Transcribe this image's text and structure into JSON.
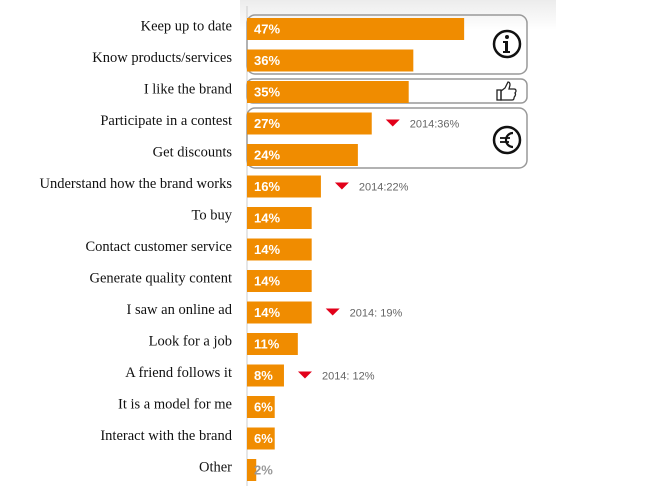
{
  "chart_data": {
    "type": "bar",
    "orientation": "horizontal",
    "color": "#f08c00",
    "categories": [
      "Keep up to date",
      "Know products/services",
      "I like the brand",
      "Participate in a contest",
      "Get discounts",
      "Understand how the brand works",
      "To buy",
      "Contact customer service",
      "Generate quality content",
      "I saw an online ad",
      "Look for a job",
      "A friend follows it",
      "It is a model for me",
      "Interact with the brand",
      "Other"
    ],
    "values": [
      47,
      36,
      35,
      27,
      24,
      16,
      14,
      14,
      14,
      14,
      11,
      8,
      6,
      6,
      2
    ],
    "value_labels": [
      "47%",
      "36%",
      "35%",
      "27%",
      "24%",
      "16%",
      "14%",
      "14%",
      "14%",
      "14%",
      "11%",
      "8%",
      "6%",
      "6%",
      "2%"
    ],
    "annotations": [
      null,
      null,
      null,
      "2014:36%",
      null,
      "2014:22%",
      null,
      null,
      null,
      "2014: 19%",
      null,
      "2014: 12%",
      null,
      null,
      null
    ],
    "annotation_color": "#e2001a"
  }
}
